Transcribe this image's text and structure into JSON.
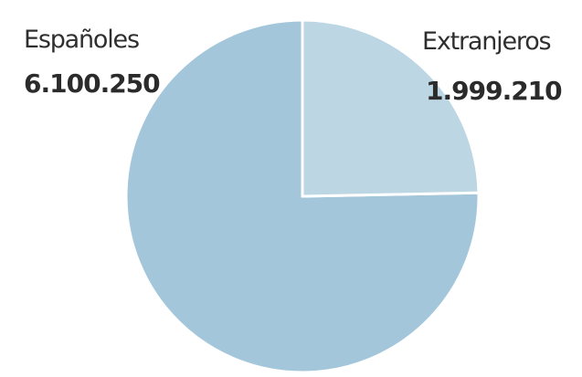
{
  "chart_data": {
    "type": "pie",
    "slices": [
      {
        "label": "Españoles",
        "value_label": "6.100.250",
        "value": 6100250,
        "color": "#a3c6db"
      },
      {
        "label": "Extranjeros",
        "value_label": "1.999.210",
        "value": 1999210,
        "color": "#bcd6e4"
      }
    ]
  }
}
